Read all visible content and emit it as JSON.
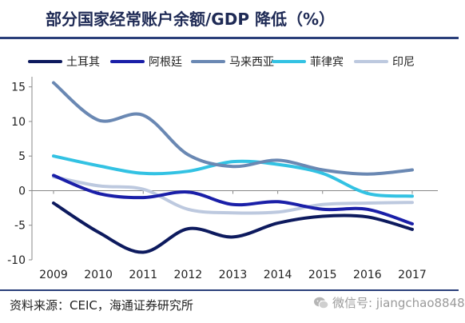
{
  "title": "部分国家经常账户余额/GDP 降低（%）",
  "source": "资料来源：CEIC，海通证券研究所",
  "watermark": "微信号: jiangchao8848",
  "chart_data": {
    "type": "line",
    "title": "部分国家经常账户余额/GDP 降低（%）",
    "x": [
      "2009",
      "2010",
      "2011",
      "2012",
      "2013",
      "2014",
      "2015",
      "2016",
      "2017"
    ],
    "ylim": [
      -10,
      16
    ],
    "yticks": [
      -10,
      -5,
      0,
      5,
      10,
      15
    ],
    "legend_position": "top",
    "grid": false,
    "series": [
      {
        "name": "土耳其",
        "color": "#0d1a5e",
        "values": [
          -1.8,
          -6.0,
          -8.9,
          -5.5,
          -6.7,
          -4.7,
          -3.7,
          -3.8,
          -5.6
        ]
      },
      {
        "name": "阿根廷",
        "color": "#1a1fa8",
        "values": [
          2.2,
          -0.4,
          -1.0,
          -0.2,
          -2.0,
          -1.6,
          -2.7,
          -2.7,
          -4.8
        ]
      },
      {
        "name": "马来西亚",
        "color": "#6a88b3",
        "values": [
          15.6,
          10.2,
          10.9,
          5.2,
          3.5,
          4.4,
          3.0,
          2.4,
          3.0
        ]
      },
      {
        "name": "菲律宾",
        "color": "#33c2e3",
        "values": [
          5.0,
          3.6,
          2.5,
          2.8,
          4.2,
          3.8,
          2.5,
          -0.4,
          -0.8
        ]
      },
      {
        "name": "印尼",
        "color": "#bdc9df",
        "values": [
          2.0,
          0.7,
          0.2,
          -2.7,
          -3.2,
          -3.1,
          -2.0,
          -1.8,
          -1.7
        ]
      }
    ]
  }
}
